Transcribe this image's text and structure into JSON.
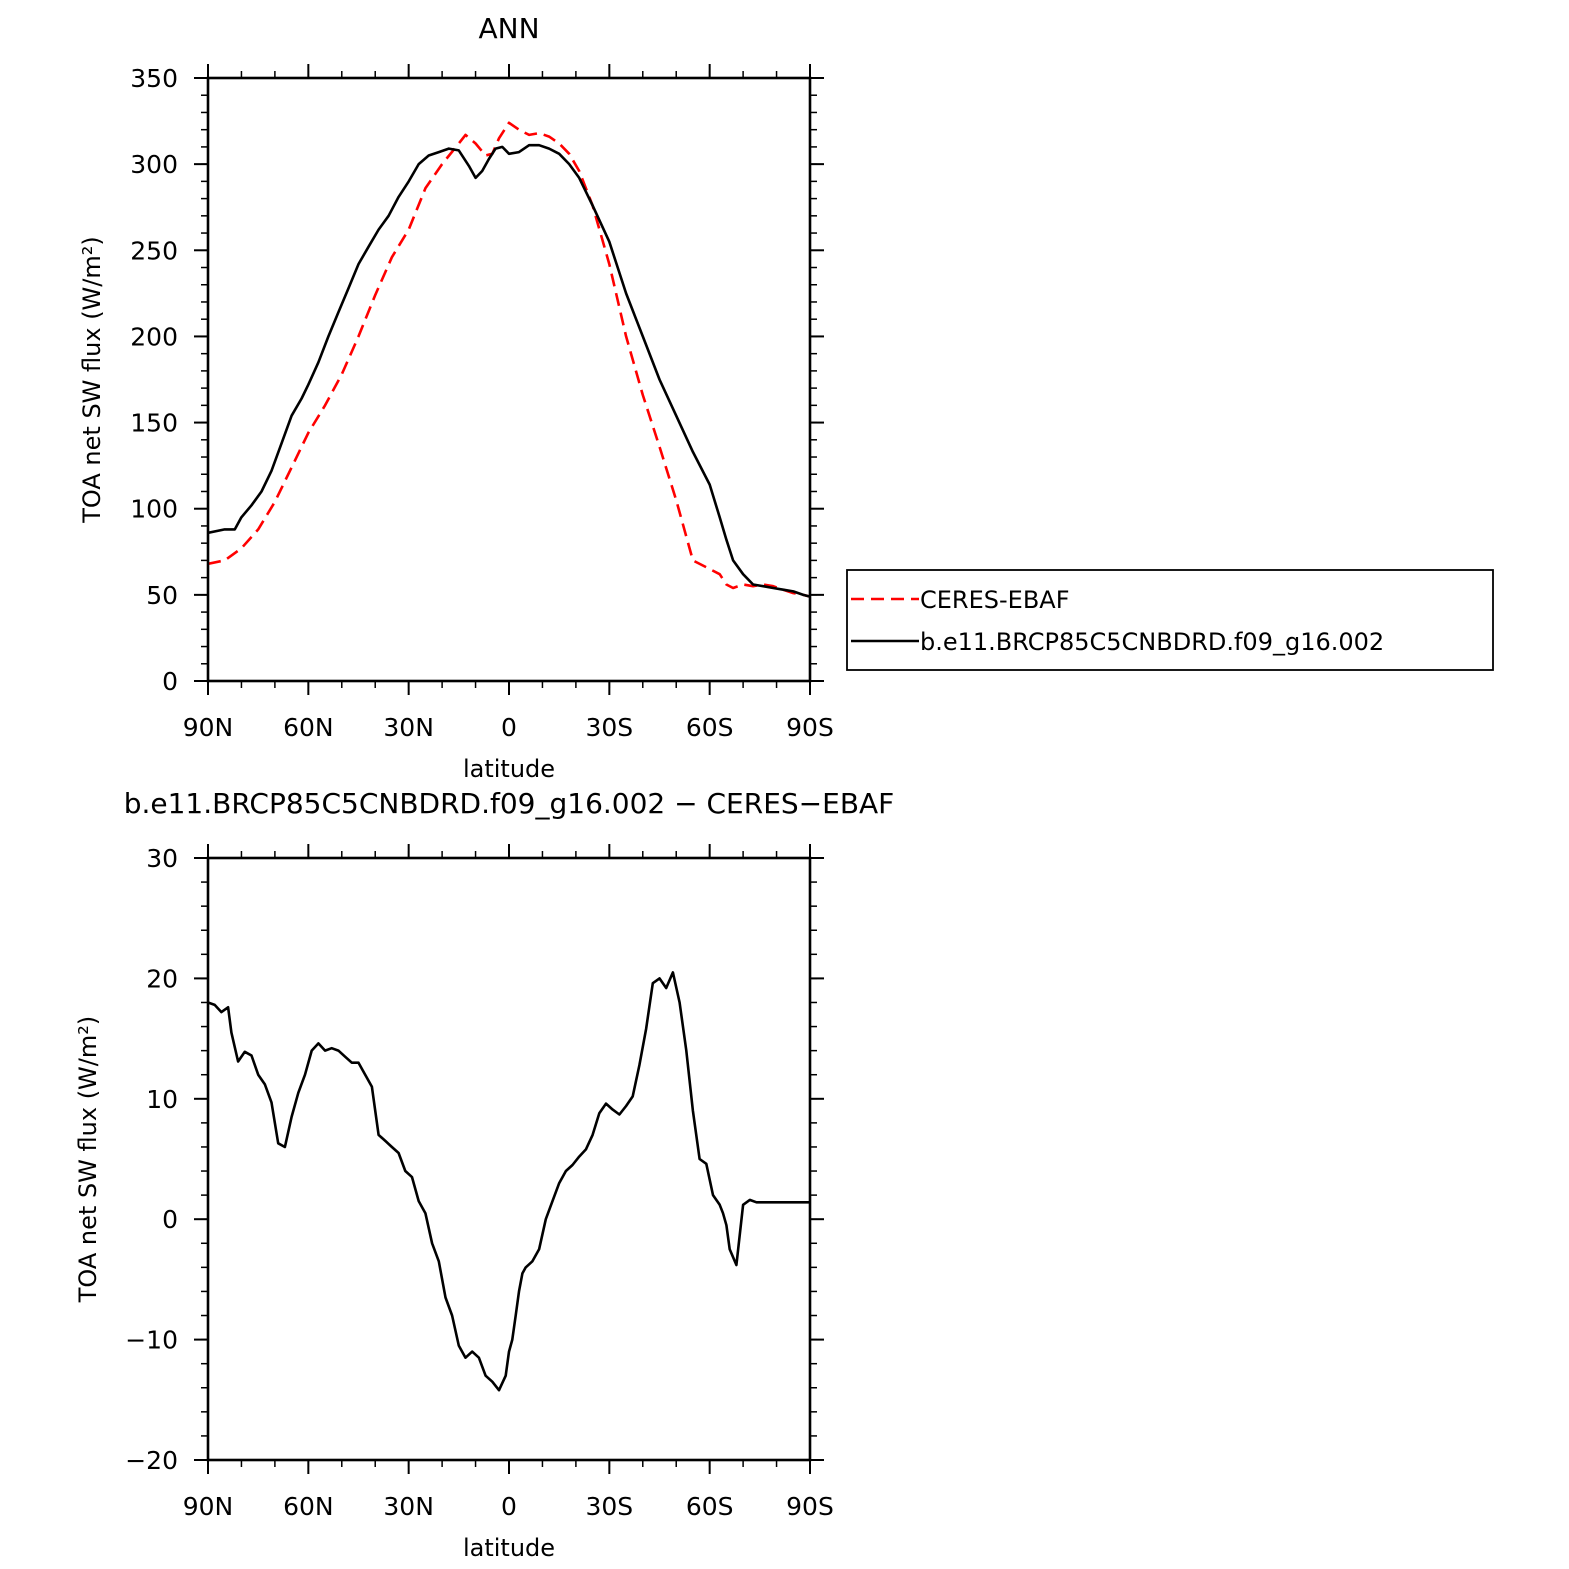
{
  "chart_data": [
    {
      "type": "line",
      "title": "ANN",
      "xlabel": "latitude",
      "ylabel": "TOA net SW flux (W/m²)",
      "xlim": [
        -90,
        90
      ],
      "ylim": [
        0,
        350
      ],
      "x_ticks": [
        -90,
        -60,
        -30,
        0,
        30,
        60,
        90
      ],
      "x_tick_labels": [
        "90N",
        "60N",
        "30N",
        "0",
        "30S",
        "60S",
        "90S"
      ],
      "y_ticks": [
        0,
        50,
        100,
        150,
        200,
        250,
        300,
        350
      ],
      "y_tick_labels": [
        "0",
        "50",
        "100",
        "150",
        "200",
        "250",
        "300",
        "350"
      ],
      "grid": false,
      "legend": {
        "placement": "right",
        "entries": [
          "CERES-EBAF",
          "b.e11.BRCP85C5CNBDRD.f09_g16.002"
        ]
      },
      "series": [
        {
          "name": "CERES-EBAF",
          "color": "#ff0000",
          "dash": "dashed",
          "x": [
            -90,
            -85,
            -80,
            -75,
            -70,
            -65,
            -60,
            -55,
            -50,
            -45,
            -40,
            -35,
            -30,
            -25,
            -20,
            -15,
            -13,
            -10,
            -7,
            -5,
            -3,
            0,
            3,
            6,
            9,
            12,
            15,
            18,
            21,
            25,
            30,
            35,
            40,
            45,
            50,
            55,
            60,
            63,
            65,
            67,
            70,
            73,
            76,
            79,
            82,
            85,
            88,
            90
          ],
          "y": [
            68,
            70,
            77,
            88,
            104,
            124,
            144,
            160,
            178,
            200,
            224,
            246,
            262,
            286,
            300,
            312,
            317,
            312,
            305,
            306,
            315,
            324,
            320,
            317,
            318,
            316,
            312,
            306,
            296,
            276,
            242,
            200,
            166,
            136,
            105,
            70,
            65,
            62,
            56,
            54,
            56,
            55,
            56,
            55,
            53,
            51,
            50,
            49
          ]
        },
        {
          "name": "b.e11.BRCP85C5CNBDRD.f09_g16.002",
          "color": "#000000",
          "dash": "solid",
          "x": [
            -90,
            -85,
            -82,
            -80,
            -77,
            -74,
            -71,
            -68,
            -65,
            -62,
            -60,
            -57,
            -54,
            -51,
            -48,
            -45,
            -42,
            -39,
            -36,
            -33,
            -30,
            -27,
            -24,
            -21,
            -18,
            -15,
            -12,
            -10,
            -8,
            -6,
            -4,
            -2,
            0,
            3,
            6,
            9,
            12,
            15,
            18,
            21,
            25,
            30,
            35,
            40,
            45,
            50,
            55,
            60,
            63,
            65,
            67,
            70,
            73,
            76,
            79,
            82,
            85,
            88,
            90
          ],
          "y": [
            86,
            88,
            88,
            95,
            102,
            110,
            122,
            138,
            154,
            164,
            172,
            185,
            200,
            214,
            228,
            242,
            252,
            262,
            270,
            281,
            290,
            300,
            305,
            307,
            309,
            308,
            299,
            292,
            296,
            303,
            309,
            310,
            306,
            307,
            311,
            311,
            309,
            306,
            300,
            292,
            276,
            255,
            225,
            200,
            175,
            154,
            133,
            114,
            95,
            82,
            70,
            62,
            56,
            55,
            54,
            53,
            52,
            50,
            49
          ]
        }
      ]
    },
    {
      "type": "line",
      "title": "b.e11.BRCP85C5CNBDRD.f09_g16.002 − CERES−EBAF",
      "xlabel": "latitude",
      "ylabel": "TOA net SW flux (W/m²)",
      "xlim": [
        -90,
        90
      ],
      "ylim": [
        -20,
        30
      ],
      "x_ticks": [
        -90,
        -60,
        -30,
        0,
        30,
        60,
        90
      ],
      "x_tick_labels": [
        "90N",
        "60N",
        "30N",
        "0",
        "30S",
        "60S",
        "90S"
      ],
      "y_ticks": [
        -20,
        -10,
        0,
        10,
        20,
        30
      ],
      "y_tick_labels": [
        "−20",
        "−10",
        "0",
        "10",
        "20",
        "30"
      ],
      "grid": false,
      "series": [
        {
          "color": "#000000",
          "dash": "solid",
          "x": [
            -90,
            -88,
            -86,
            -84,
            -83,
            -81,
            -79,
            -77,
            -75,
            -73,
            -71,
            -69,
            -67,
            -65,
            -63,
            -61,
            -59,
            -57,
            -55,
            -53,
            -51,
            -49,
            -47,
            -45,
            -43,
            -41,
            -39,
            -37,
            -35,
            -33,
            -31,
            -29,
            -27,
            -25,
            -23,
            -21,
            -19,
            -17,
            -15,
            -13,
            -11,
            -9,
            -7,
            -5,
            -3,
            -1,
            0,
            1,
            2,
            3,
            4,
            5,
            7,
            9,
            11,
            13,
            15,
            17,
            19,
            21,
            23,
            25,
            27,
            29,
            31,
            33,
            35,
            37,
            39,
            41,
            43,
            45,
            47,
            49,
            51,
            53,
            55,
            57,
            59,
            61,
            63,
            64,
            65,
            66,
            68,
            70,
            72,
            74,
            76,
            78,
            80,
            82,
            84,
            86,
            88,
            90
          ],
          "y": [
            18,
            17.8,
            17.2,
            17.6,
            15.5,
            13.1,
            13.9,
            13.6,
            12,
            11.2,
            9.7,
            6.3,
            6,
            8.5,
            10.5,
            12,
            14,
            14.6,
            14,
            14.2,
            14,
            13.5,
            13,
            13,
            12,
            11,
            7,
            6.5,
            6,
            5.5,
            4,
            3.5,
            1.5,
            0.5,
            -2,
            -3.5,
            -6.5,
            -8,
            -10.5,
            -11.5,
            -11,
            -11.5,
            -13,
            -13.5,
            -14.2,
            -13,
            -11,
            -10,
            -8,
            -6,
            -4.5,
            -4,
            -3.5,
            -2.5,
            0,
            1.5,
            3,
            4,
            4.5,
            5.2,
            5.8,
            7,
            8.8,
            9.6,
            9.1,
            8.7,
            9.4,
            10.2,
            12.8,
            15.8,
            19.6,
            20,
            19.2,
            20.5,
            18,
            14,
            9,
            5,
            4.6,
            2,
            1.2,
            0.5,
            -0.5,
            -2.5,
            -3.8,
            1.2,
            1.6,
            1.4,
            1.4,
            1.4,
            1.4,
            1.4,
            1.4,
            1.4,
            1.4,
            1.4
          ]
        }
      ]
    }
  ]
}
